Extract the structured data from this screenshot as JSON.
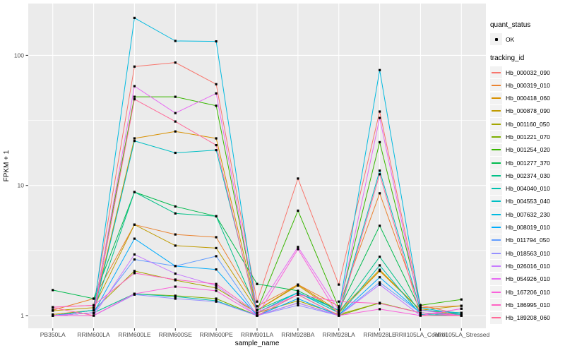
{
  "figure": {
    "panel_background": "#EBEBEB",
    "gridline_color": "#FFFFFF",
    "axis_text_color": "#4D4D4D",
    "point_color": "#000000",
    "legend_key_background": "#F2F2F2"
  },
  "legend": {
    "quant_title": "quant_status",
    "quant_items": [
      {
        "label": "OK",
        "symbol": "black-point"
      }
    ],
    "tracking_title": "tracking_id"
  },
  "chart_data": {
    "type": "line",
    "title": "",
    "xlabel": "sample_name",
    "ylabel": "FPKM + 1",
    "y_scale": "log10",
    "ylim": [
      0.8,
      250
    ],
    "y_ticks": [
      1,
      10,
      100
    ],
    "y_minor_gridlines": [
      3.162,
      31.623
    ],
    "grid": true,
    "legend_position": "right",
    "point_shape": "small black square at every sample (quant_status = OK)",
    "categories": [
      "PB350LA",
      "RRIM600LA",
      "RRIM600LE",
      "RRIM600SE",
      "RRIM600PE",
      "RRIM901LA",
      "RRIM928BA",
      "RRIM928LA",
      "RRIM928LE",
      "RRII105LA_Control",
      "RRII105LA_Stressed"
    ],
    "series": [
      {
        "name": "Hb_000032_090",
        "color": "#F8766D",
        "values": [
          1.16,
          1.2,
          82,
          88,
          60,
          1.28,
          11.3,
          1.73,
          37,
          1.2,
          1.02
        ]
      },
      {
        "name": "Hb_000319_010",
        "color": "#EA8331",
        "values": [
          1.1,
          1.35,
          5.0,
          4.2,
          4.0,
          1.18,
          1.73,
          1.18,
          8.7,
          1.15,
          1.19
        ]
      },
      {
        "name": "Hb_000418_060",
        "color": "#D89000",
        "values": [
          1.02,
          1.1,
          23,
          26,
          23,
          1.1,
          1.73,
          1.08,
          2.25,
          1.1,
          1.02
        ]
      },
      {
        "name": "Hb_000878_090",
        "color": "#C09B00",
        "values": [
          1.09,
          1.15,
          5.0,
          3.45,
          3.3,
          1.1,
          1.7,
          1.05,
          2.2,
          1.1,
          1.19
        ]
      },
      {
        "name": "Hb_001160_050",
        "color": "#A3A500",
        "values": [
          1.0,
          1.1,
          2.2,
          1.87,
          1.63,
          1.05,
          1.3,
          1.02,
          1.25,
          1.05,
          1.0
        ]
      },
      {
        "name": "Hb_001221_070",
        "color": "#7CAE00",
        "values": [
          1.0,
          1.05,
          1.47,
          1.42,
          1.35,
          1.0,
          1.25,
          1.0,
          1.25,
          1.05,
          1.0
        ]
      },
      {
        "name": "Hb_001254_020",
        "color": "#39B600",
        "values": [
          1.0,
          1.1,
          48,
          48,
          41,
          1.1,
          6.4,
          1.15,
          21.5,
          1.2,
          1.33
        ]
      },
      {
        "name": "Hb_001277_370",
        "color": "#00BB4E",
        "values": [
          1.57,
          1.35,
          8.9,
          6.9,
          5.8,
          1.75,
          1.55,
          1.1,
          4.9,
          1.1,
          1.05
        ]
      },
      {
        "name": "Hb_002374_030",
        "color": "#00C087",
        "values": [
          1.0,
          1.1,
          8.9,
          6.1,
          5.8,
          1.1,
          1.5,
          1.05,
          2.83,
          1.05,
          1.02
        ]
      },
      {
        "name": "Hb_004040_010",
        "color": "#00C0AF",
        "values": [
          1.0,
          1.05,
          1.47,
          1.4,
          1.3,
          1.0,
          1.45,
          1.0,
          2.43,
          1.02,
          1.0
        ]
      },
      {
        "name": "Hb_004553_040",
        "color": "#00BFC4",
        "values": [
          1.0,
          1.05,
          22,
          17.8,
          18.7,
          1.05,
          1.5,
          1.05,
          13.0,
          1.1,
          1.05
        ]
      },
      {
        "name": "Hb_007632_230",
        "color": "#00BAE0",
        "values": [
          1.0,
          1.1,
          194,
          129,
          128,
          1.05,
          1.5,
          1.1,
          77,
          1.15,
          1.02
        ]
      },
      {
        "name": "Hb_008019_010",
        "color": "#00ACFC",
        "values": [
          1.0,
          1.05,
          3.9,
          2.4,
          2.26,
          1.0,
          1.35,
          1.0,
          1.97,
          1.05,
          1.0
        ]
      },
      {
        "name": "Hb_011794_050",
        "color": "#619CFF",
        "values": [
          1.0,
          1.05,
          2.7,
          2.4,
          2.86,
          1.0,
          1.25,
          1.0,
          1.8,
          1.05,
          1.0
        ]
      },
      {
        "name": "Hb_018563_010",
        "color": "#9590FF",
        "values": [
          1.0,
          1.0,
          1.45,
          1.35,
          1.28,
          1.0,
          1.2,
          1.0,
          1.73,
          1.0,
          1.0
        ]
      },
      {
        "name": "Hb_026016_010",
        "color": "#C77CFF",
        "values": [
          1.0,
          1.0,
          2.95,
          2.1,
          1.7,
          1.0,
          1.25,
          1.0,
          1.73,
          1.0,
          1.13
        ]
      },
      {
        "name": "Hb_054926_010",
        "color": "#E76BF3",
        "values": [
          1.0,
          1.05,
          58,
          36,
          51,
          1.1,
          3.37,
          1.1,
          33,
          1.1,
          1.0
        ]
      },
      {
        "name": "Hb_167206_010",
        "color": "#FA62DB",
        "values": [
          1.0,
          1.0,
          1.47,
          1.67,
          1.55,
          1.0,
          3.24,
          1.0,
          1.12,
          1.0,
          1.13
        ]
      },
      {
        "name": "Hb_186995_010",
        "color": "#FF61C3",
        "values": [
          1.16,
          1.2,
          2.12,
          1.89,
          1.75,
          1.05,
          1.45,
          1.28,
          1.24,
          1.05,
          1.0
        ]
      },
      {
        "name": "Hb_189208_060",
        "color": "#FF6A98",
        "values": [
          1.15,
          1.0,
          46,
          31,
          20.4,
          1.0,
          1.45,
          1.0,
          12.2,
          1.0,
          1.0
        ]
      }
    ]
  }
}
